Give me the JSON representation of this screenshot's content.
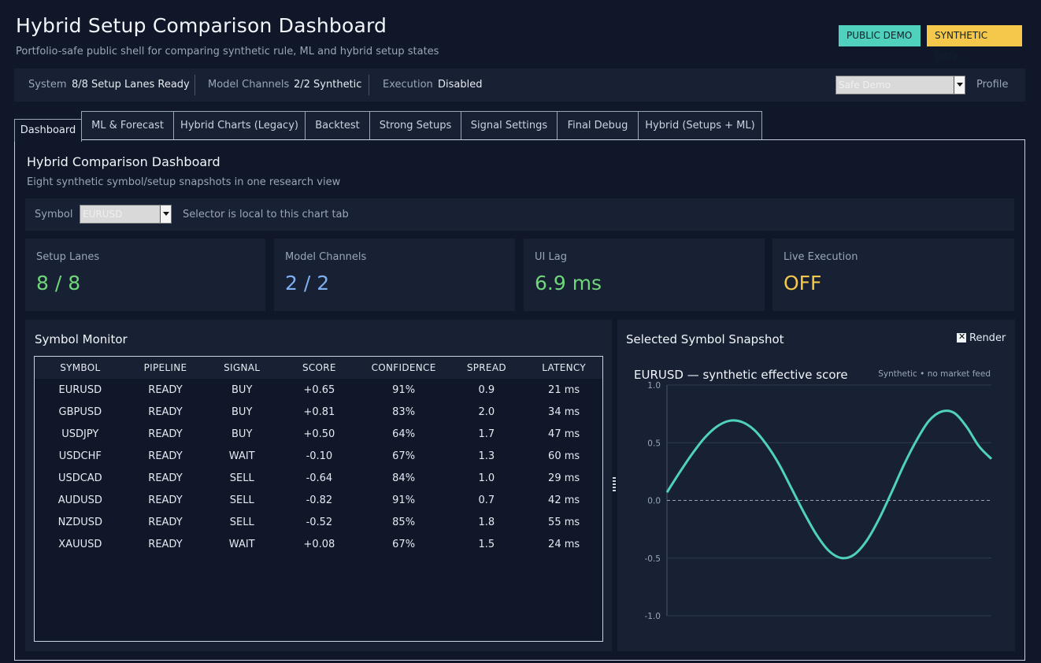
{
  "header": {
    "title": "Hybrid Setup Comparison Dashboard",
    "subtitle": "Portfolio-safe public shell for comparing synthetic rule, ML and hybrid setup states",
    "badges": [
      "PUBLIC DEMO",
      "SYNTHETIC DATA"
    ]
  },
  "status": {
    "system_label": "System",
    "system_value": "8/8 Setup Lanes Ready",
    "channels_label": "Model Channels",
    "channels_value": "2/2 Synthetic",
    "execution_label": "Execution",
    "execution_value": "Disabled",
    "profile_value": "Safe Demo",
    "profile_label": "Profile"
  },
  "tabs": [
    "Dashboard",
    "ML & Forecast",
    "Hybrid Charts (Legacy)",
    "Backtest",
    "Strong Setups",
    "Signal Settings",
    "Final Debug",
    "Hybrid (Setups + ML)"
  ],
  "panel": {
    "title": "Hybrid Comparison Dashboard",
    "subtitle": "Eight synthetic symbol/setup snapshots in one research view",
    "symbol_label": "Symbol",
    "symbol_value": "EURUSD",
    "symbol_hint": "Selector is local to this chart tab"
  },
  "cards": [
    {
      "label": "Setup Lanes",
      "value": "8 / 8",
      "color": "#6fd67a"
    },
    {
      "label": "Model Channels",
      "value": "2 / 2",
      "color": "#7fb0f2"
    },
    {
      "label": "UI Lag",
      "value": "6.9 ms",
      "color": "#6fd67a"
    },
    {
      "label": "Live Execution",
      "value": "OFF",
      "color": "#f5c84c"
    }
  ],
  "monitor": {
    "title": "Symbol Monitor",
    "columns": [
      "SYMBOL",
      "PIPELINE",
      "SIGNAL",
      "SCORE",
      "CONFIDENCE",
      "SPREAD",
      "LATENCY"
    ],
    "rows": [
      [
        "EURUSD",
        "READY",
        "BUY",
        "+0.65",
        "91%",
        "0.9",
        "21 ms"
      ],
      [
        "GBPUSD",
        "READY",
        "BUY",
        "+0.81",
        "83%",
        "2.0",
        "34 ms"
      ],
      [
        "USDJPY",
        "READY",
        "BUY",
        "+0.50",
        "64%",
        "1.7",
        "47 ms"
      ],
      [
        "USDCHF",
        "READY",
        "WAIT",
        "-0.10",
        "67%",
        "1.3",
        "60 ms"
      ],
      [
        "USDCAD",
        "READY",
        "SELL",
        "-0.64",
        "84%",
        "1.0",
        "29 ms"
      ],
      [
        "AUDUSD",
        "READY",
        "SELL",
        "-0.82",
        "91%",
        "0.7",
        "42 ms"
      ],
      [
        "NZDUSD",
        "READY",
        "SELL",
        "-0.52",
        "85%",
        "1.8",
        "55 ms"
      ],
      [
        "XAUUSD",
        "READY",
        "WAIT",
        "+0.08",
        "67%",
        "1.5",
        "24 ms"
      ]
    ]
  },
  "snapshot": {
    "title": "Selected Symbol Snapshot",
    "render_label": "Render",
    "render_checked": true
  },
  "chart_data": {
    "type": "line",
    "title": "EURUSD — synthetic effective score",
    "annotation": "Synthetic • no market feed",
    "ylim": [
      -1.0,
      1.0
    ],
    "yticks": [
      "1.0",
      "0.5",
      "0.0",
      "-0.5",
      "-1.0"
    ],
    "ytick_values": [
      1.0,
      0.5,
      0.0,
      -0.5,
      -1.0
    ],
    "zero_line": "dashed",
    "grid": true,
    "line_color": "#4fd1be",
    "series": [
      {
        "values": [
          0.07,
          0.24,
          0.4,
          0.54,
          0.64,
          0.69,
          0.68,
          0.61,
          0.48,
          0.31,
          0.1,
          -0.11,
          -0.3,
          -0.44,
          -0.5,
          -0.47,
          -0.35,
          -0.16,
          0.07,
          0.31,
          0.52,
          0.69,
          0.77,
          0.76,
          0.64,
          0.47,
          0.36
        ]
      }
    ]
  }
}
